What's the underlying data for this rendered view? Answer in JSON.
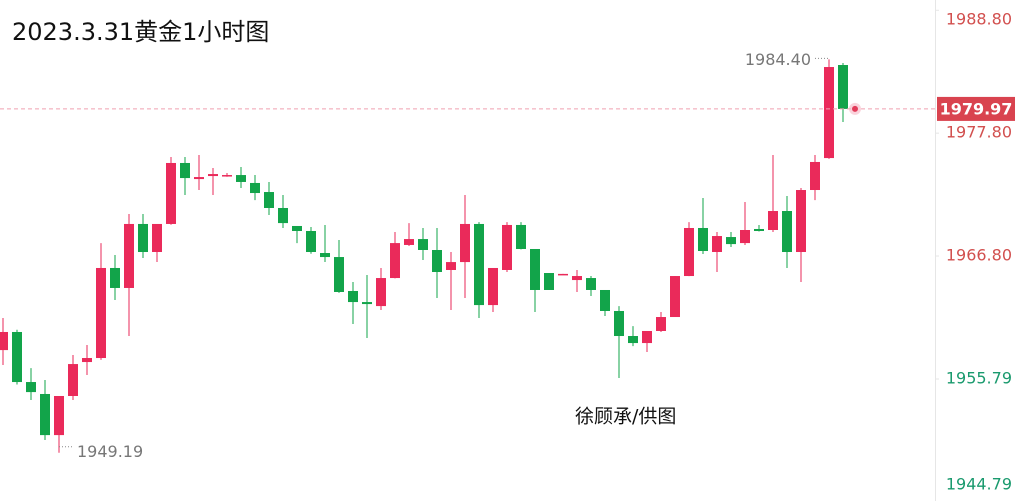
{
  "chart_data": {
    "type": "candlestick",
    "title": "2023.3.31黄金1小时图",
    "watermark": "徐顾承/供图",
    "up_color": "#ea2a5a",
    "down_color": "#12a44a",
    "ylim": [
      1944.87,
      1989.72
    ],
    "yticks": [
      {
        "value": 1988.8,
        "label": "1988.80"
      },
      {
        "value": 1977.8,
        "label": "1977.80"
      },
      {
        "value": 1966.8,
        "label": "1966.80"
      },
      {
        "value": 1955.79,
        "label": "1955.79"
      },
      {
        "value": 1944.79,
        "label": "1944.79"
      }
    ],
    "ytick_colors": [
      "#d2504f",
      "#d2504f",
      "#d2504f",
      "#1a9a6e",
      "#1a9a6e"
    ],
    "last_price": {
      "value": 1979.97,
      "label": "1979.97"
    },
    "annotations": [
      {
        "value": 1984.4,
        "label": "1984.40"
      },
      {
        "value": 1949.19,
        "label": "1949.19"
      }
    ],
    "open": [
      1958.38,
      1960.0,
      1955.52,
      1954.45,
      1950.77,
      1954.27,
      1957.31,
      1957.67,
      1965.73,
      1963.94,
      1969.67,
      1967.16,
      1969.67,
      1975.13,
      1973.69,
      1973.96,
      1974.05,
      1974.05,
      1973.34,
      1972.53,
      1971.1,
      1969.49,
      1969.04,
      1967.07,
      1966.71,
      1963.67,
      1962.68,
      1962.32,
      1964.83,
      1967.79,
      1968.32,
      1967.34,
      1965.55,
      1966.26,
      1969.67,
      1962.41,
      1965.55,
      1969.58,
      1967.43,
      1965.28,
      1965.19,
      1964.65,
      1964.83,
      1963.76,
      1961.88,
      1959.64,
      1959.01,
      1960.09,
      1961.34,
      1965.01,
      1969.31,
      1967.16,
      1968.5,
      1967.96,
      1969.22,
      1969.13,
      1970.83,
      1967.16,
      1972.71,
      1975.57,
      1983.9
    ],
    "high": [
      1961.25,
      1960.2,
      1956.77,
      1955.7,
      1954.27,
      1957.94,
      1958.83,
      1967.96,
      1966.89,
      1970.56,
      1970.56,
      1969.67,
      1975.66,
      1975.66,
      1975.84,
      1974.68,
      1974.23,
      1974.77,
      1974.05,
      1973.43,
      1972.26,
      1969.49,
      1969.4,
      1969.58,
      1968.23,
      1964.47,
      1965.1,
      1965.73,
      1968.95,
      1969.75,
      1969.31,
      1969.31,
      1967.16,
      1972.26,
      1969.84,
      1965.73,
      1969.84,
      1969.84,
      1967.43,
      1965.28,
      1965.2,
      1965.55,
      1965.01,
      1963.76,
      1962.32,
      1960.53,
      1960.09,
      1961.79,
      1965.01,
      1969.84,
      1971.99,
      1968.95,
      1968.95,
      1971.64,
      1969.58,
      1975.84,
      1972.17,
      1972.89,
      1975.84,
      1984.4,
      1984.08
    ],
    "low": [
      1957.04,
      1955.3,
      1953.91,
      1950.33,
      1949.19,
      1953.91,
      1956.15,
      1957.5,
      1962.86,
      1959.64,
      1966.62,
      1966.26,
      1969.6,
      1972.26,
      1972.71,
      1972.26,
      1973.9,
      1972.89,
      1971.81,
      1970.47,
      1969.31,
      1967.96,
      1967.0,
      1966.26,
      1963.5,
      1960.71,
      1959.46,
      1961.97,
      1964.8,
      1967.7,
      1966.44,
      1963.04,
      1961.97,
      1963.04,
      1961.25,
      1961.79,
      1965.37,
      1967.4,
      1961.79,
      1963.76,
      1965.19,
      1963.58,
      1963.22,
      1961.43,
      1955.88,
      1958.74,
      1958.21,
      1960.0,
      1961.34,
      1965.0,
      1966.98,
      1965.37,
      1967.61,
      1967.79,
      1969.0,
      1968.95,
      1965.73,
      1964.47,
      1971.81,
      1975.5,
      1978.8
    ],
    "close": [
      1960.0,
      1955.52,
      1954.62,
      1950.77,
      1954.27,
      1957.13,
      1957.67,
      1965.73,
      1963.94,
      1969.67,
      1967.16,
      1969.67,
      1975.13,
      1973.78,
      1973.87,
      1974.14,
      1974.05,
      1973.43,
      1972.44,
      1971.1,
      1969.75,
      1969.04,
      1967.16,
      1966.71,
      1963.58,
      1962.68,
      1962.5,
      1964.83,
      1967.96,
      1968.32,
      1967.34,
      1965.37,
      1966.26,
      1969.67,
      1962.41,
      1965.73,
      1969.58,
      1967.43,
      1963.76,
      1963.76,
      1965.2,
      1965.01,
      1963.76,
      1961.88,
      1959.64,
      1959.01,
      1960.09,
      1961.34,
      1965.01,
      1969.31,
      1967.25,
      1968.59,
      1967.87,
      1969.13,
      1969.04,
      1970.83,
      1967.16,
      1972.71,
      1975.22,
      1983.72,
      1979.97
    ]
  }
}
